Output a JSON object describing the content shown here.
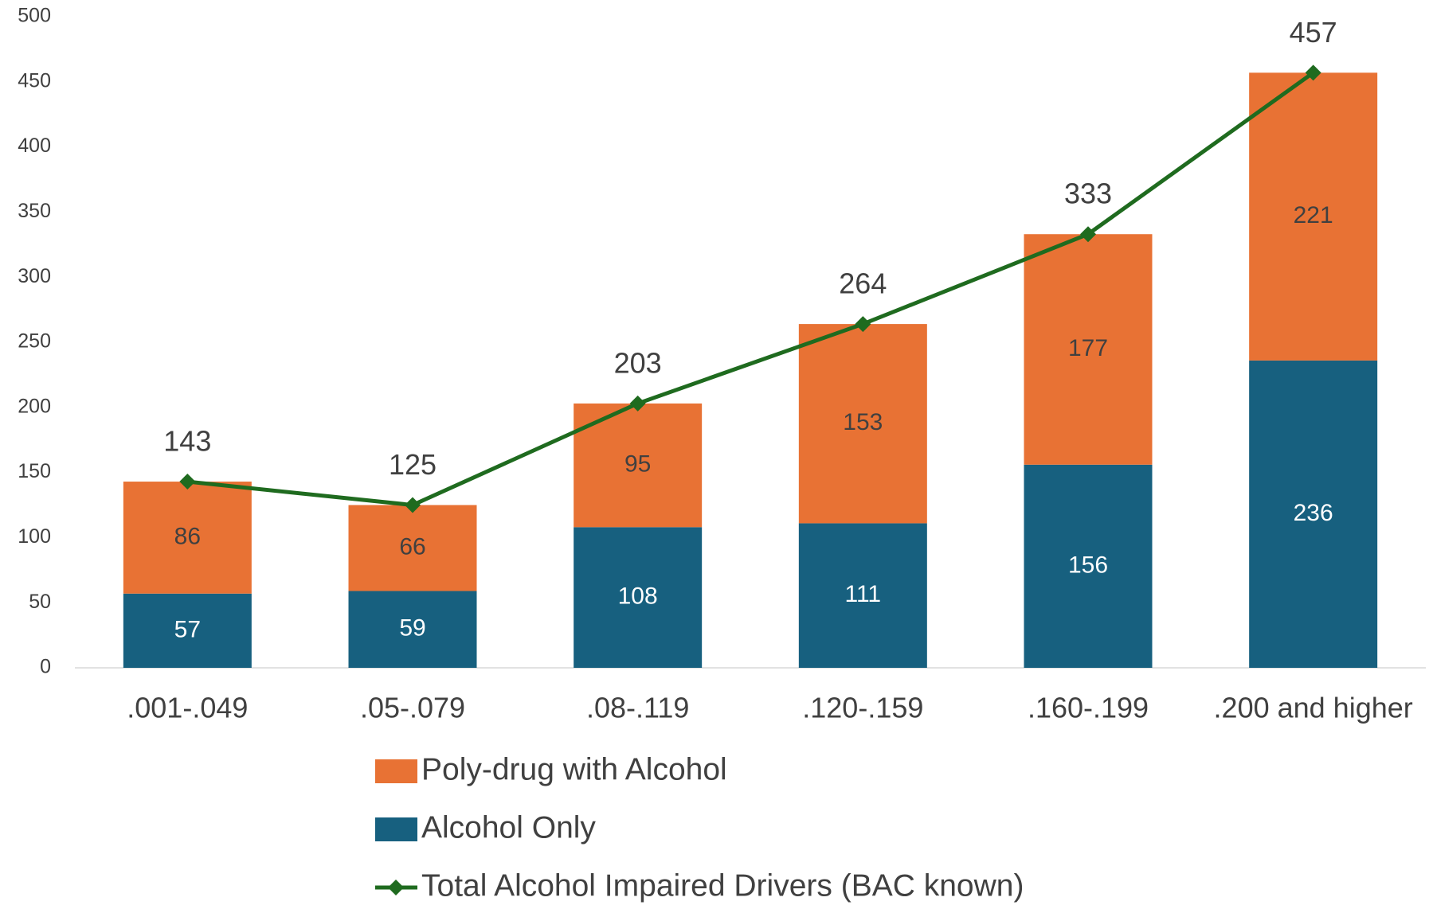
{
  "chart_data": {
    "type": "bar",
    "stacked": true,
    "categories": [
      ".001-.049",
      ".05-.079",
      ".08-.119",
      ".120-.159",
      ".160-.199",
      ".200 and higher"
    ],
    "series": [
      {
        "name": "Alcohol Only",
        "color": "#17607f",
        "values": [
          57,
          59,
          108,
          111,
          156,
          236
        ]
      },
      {
        "name": "Poly-drug with Alcohol",
        "color": "#e87234",
        "values": [
          86,
          66,
          95,
          153,
          177,
          221
        ]
      },
      {
        "name": "Total Alcohol Impaired Drivers (BAC known)",
        "type": "line",
        "color": "#1f6b1f",
        "values": [
          143,
          125,
          203,
          264,
          333,
          457
        ]
      }
    ],
    "ylim": [
      0,
      500
    ],
    "yticks": [
      0,
      50,
      100,
      150,
      200,
      250,
      300,
      350,
      400,
      450,
      500
    ],
    "grid": false,
    "legend": "bottom"
  }
}
